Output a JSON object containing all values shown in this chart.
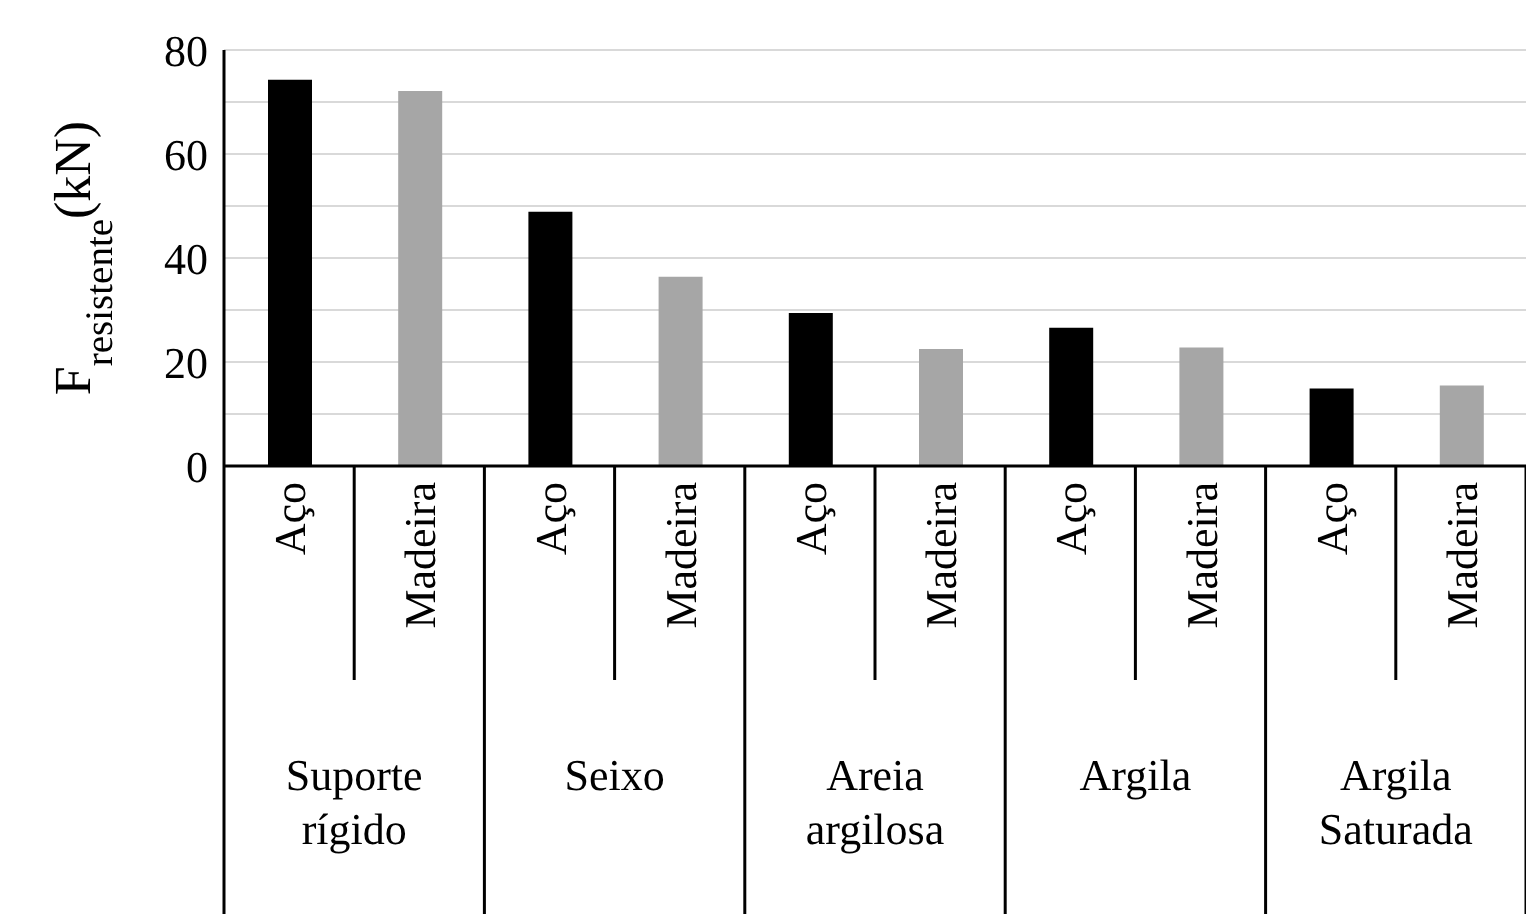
{
  "chart_data": {
    "type": "bar",
    "ylabel": "F$_{resistente}$(kN)",
    "categories": [
      "Aço",
      "Madeira",
      "Aço",
      "Madeira",
      "Aço",
      "Madeira",
      "Aço",
      "Madeira",
      "Aço",
      "Madeira"
    ],
    "values": [
      74.3,
      72.1,
      48.9,
      36.4,
      29.4,
      22.5,
      26.6,
      22.8,
      14.9,
      15.5
    ],
    "colors": [
      "#000000",
      "#a6a6a6",
      "#000000",
      "#a6a6a6",
      "#000000",
      "#a6a6a6",
      "#000000",
      "#a6a6a6",
      "#000000",
      "#a6a6a6"
    ],
    "annotations": [
      "Suporte rígido",
      "Seixo",
      "Areia argilosa",
      "Argila",
      "Argila Saturada"
    ],
    "ylim": [
      0,
      80
    ],
    "yticks": [
      0,
      {
        "value": 10,
        "label": null
      },
      20,
      {
        "value": 30,
        "label": null
      },
      40,
      {
        "value": 50,
        "label": null
      },
      60,
      {
        "value": 70,
        "label": null
      },
      80
    ],
    "grid": "y"
  }
}
